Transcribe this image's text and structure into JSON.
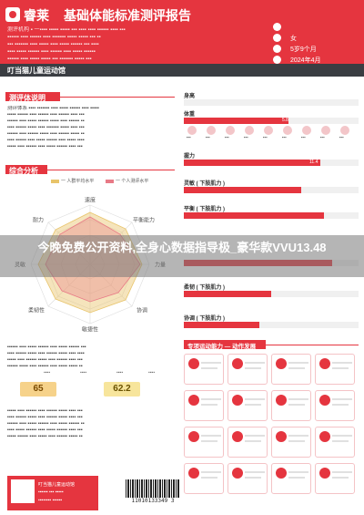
{
  "header": {
    "brand": "睿莱",
    "title": "基础体能标准测评报告",
    "lines": [
      "测评机构 ▪ 一▪▪▪▪ ▪▪▪▪▪ ▪▪▪▪▪ ▪▪▪ ▪▪▪▪ ▪▪▪▪ ▪▪▪▪▪▪ ▪▪▪▪ ▪▪▪",
      "▪▪▪▪▪▪ ▪▪▪▪ ▪▪▪▪▪▪ ▪▪▪▪ ▪▪▪▪▪▪▪ ▪▪▪▪▪ ▪▪▪▪▪ ▪▪▪ ▪▪",
      "▪▪▪ ▪▪▪▪▪▪▪ ▪▪▪▪ ▪▪▪▪▪ ▪▪▪▪ ▪▪▪▪▪ ▪▪▪▪▪▪ ▪▪▪ ▪▪▪▪",
      "▪▪▪▪ ▪▪▪▪▪ ▪▪▪▪▪▪ ▪▪▪▪ ▪▪▪▪▪▪ ▪▪▪▪ ▪▪▪▪▪ ▪▪▪▪▪▪",
      "▪▪▪▪▪▪ ▪▪▪▪ ▪▪▪▪▪ ▪▪▪▪▪ ▪▪▪ ▪▪▪▪▪▪▪ ▪▪▪▪▪ ▪▪▪"
    ],
    "info": [
      {
        "icon": "person-icon",
        "value": ""
      },
      {
        "icon": "gender-icon",
        "value": "女"
      },
      {
        "icon": "age-icon",
        "value": "5岁9个月"
      },
      {
        "icon": "date-icon",
        "value": "2024年4月"
      }
    ]
  },
  "subheader": "叮当猫儿童运动馆",
  "sections": {
    "intro_title": "测评体说明",
    "intro_lines": [
      "测评体系 ▪▪▪▪ ▪▪▪▪▪▪▪ ▪▪▪▪ ▪▪▪▪▪ ▪▪▪▪▪▪ ▪▪▪▪ ▪▪▪▪▪",
      "▪▪▪▪▪ ▪▪▪▪▪▪ ▪▪▪▪ ▪▪▪▪▪▪ ▪▪▪▪ ▪▪▪▪▪▪ ▪▪▪▪ ▪▪▪",
      "▪▪▪▪▪▪ ▪▪▪▪ ▪▪▪▪▪ ▪▪▪▪▪▪ ▪▪▪▪▪ ▪▪▪▪ ▪▪▪▪▪▪ ▪▪",
      "▪▪▪▪ ▪▪▪▪▪▪ ▪▪▪▪▪ ▪▪▪▪ ▪▪▪▪▪▪▪ ▪▪▪▪▪ ▪▪▪▪ ▪▪▪",
      "▪▪▪▪▪▪ ▪▪▪▪ ▪▪▪▪▪▪ ▪▪▪▪▪ ▪▪▪▪ ▪▪▪▪▪▪ ▪▪▪▪▪ ▪▪",
      "▪▪▪▪ ▪▪▪▪▪▪ ▪▪▪▪ ▪▪▪▪▪ ▪▪▪▪▪▪ ▪▪▪▪ ▪▪▪▪▪ ▪▪▪▪",
      "▪▪▪▪▪ ▪▪▪▪ ▪▪▪▪▪▪ ▪▪▪▪ ▪▪▪▪▪ ▪▪▪▪▪▪ ▪▪▪▪ ▪▪▪"
    ],
    "overview_title": "综合分析",
    "radar_legend": [
      "一 人群平均水平",
      "一 个人测评水平"
    ],
    "radar_axes": [
      "速度",
      "平衡能力",
      "力量",
      "协调",
      "敏捷性",
      "柔韧性",
      "灵敏",
      "耐力"
    ],
    "overview_lines": [
      "▪▪▪▪▪▪ ▪▪▪▪ ▪▪▪▪▪ ▪▪▪▪▪▪ ▪▪▪▪ ▪▪▪▪▪ ▪▪▪▪▪▪ ▪▪▪",
      "▪▪▪▪ ▪▪▪▪▪▪ ▪▪▪▪▪ ▪▪▪▪ ▪▪▪▪▪▪ ▪▪▪▪▪ ▪▪▪▪ ▪▪▪▪",
      "▪▪▪▪▪ ▪▪▪▪ ▪▪▪▪▪▪ ▪▪▪▪▪ ▪▪▪▪ ▪▪▪▪▪▪ ▪▪▪▪ ▪▪▪",
      "▪▪▪▪▪▪ ▪▪▪▪▪ ▪▪▪▪ ▪▪▪▪▪▪ ▪▪▪▪ ▪▪▪▪▪ ▪▪▪▪▪ ▪▪"
    ],
    "score_labels": [
      "▪▪▪▪",
      "▪▪▪▪",
      "▪▪▪▪",
      "▪▪▪▪"
    ],
    "scores": [
      "65",
      "62.2"
    ],
    "bottom_title_lines": [
      "▪▪▪▪▪ ▪▪▪▪ ▪▪▪▪▪▪ ▪▪▪▪ ▪▪▪▪▪▪ ▪▪▪▪▪ ▪▪▪▪ ▪▪▪",
      "▪▪▪▪ ▪▪▪▪▪▪ ▪▪▪▪▪ ▪▪▪▪ ▪▪▪▪▪▪ ▪▪▪▪▪ ▪▪▪▪ ▪▪▪",
      "▪▪▪▪▪▪ ▪▪▪▪ ▪▪▪▪▪ ▪▪▪▪▪▪ ▪▪▪▪ ▪▪▪▪▪ ▪▪▪▪▪▪ ▪▪",
      "▪▪▪▪ ▪▪▪▪▪ ▪▪▪▪▪▪ ▪▪▪▪ ▪▪▪▪▪ ▪▪▪▪▪▪ ▪▪▪▪ ▪▪▪",
      "▪▪▪▪▪ ▪▪▪▪▪▪ ▪▪▪▪ ▪▪▪▪▪ ▪▪▪▪ ▪▪▪▪▪▪ ▪▪▪▪▪ ▪▪"
    ]
  },
  "metrics": [
    {
      "label": "身高",
      "value": "",
      "fill": 0.0
    },
    {
      "label": "体重",
      "value": "5.8",
      "fill": 0.6
    },
    {
      "label": "",
      "value": "",
      "fill": 0.0
    },
    {
      "label": "握力",
      "value": "11.4",
      "fill": 0.78
    },
    {
      "label": "灵敏 ( 下肢肌力 )",
      "value": "",
      "fill": 0.67
    },
    {
      "label": "平衡 ( 下肢肌力 )",
      "value": "",
      "fill": 0.8
    },
    {
      "label": "",
      "value": "",
      "fill": 0.85
    },
    {
      "label": "柔韧 ( 下肢肌力 )",
      "value": "",
      "fill": 0.5
    },
    {
      "label": "协调 ( 下肢肌力 )",
      "value": "",
      "fill": 0.43
    }
  ],
  "icon_labels": [
    "▪▪▪",
    "▪▪▪",
    "▪▪▪",
    "▪▪▪",
    "▪▪▪",
    "▪▪▪",
    "▪▪▪",
    "▪▪▪",
    "▪▪▪"
  ],
  "recommend_title": "专项运动能力 ― 动作发展",
  "overlay": "今晚免费公开资料,全身心数据指导极_豪华款VVU13.48",
  "footer": {
    "org_lines": [
      "叮当猫儿童运动馆",
      "▪▪▪▪▪▪ ▪▪▪ ▪▪▪▪▪",
      "▪▪▪▪▪▪▪▪ ▪▪▪▪▪▪"
    ],
    "barcode_number": "11010133349 3"
  },
  "colors": {
    "accent": "#e5353f",
    "dark": "#3a3d42",
    "radar_avg": "#e8c46a",
    "radar_personal": "#e87a86"
  }
}
